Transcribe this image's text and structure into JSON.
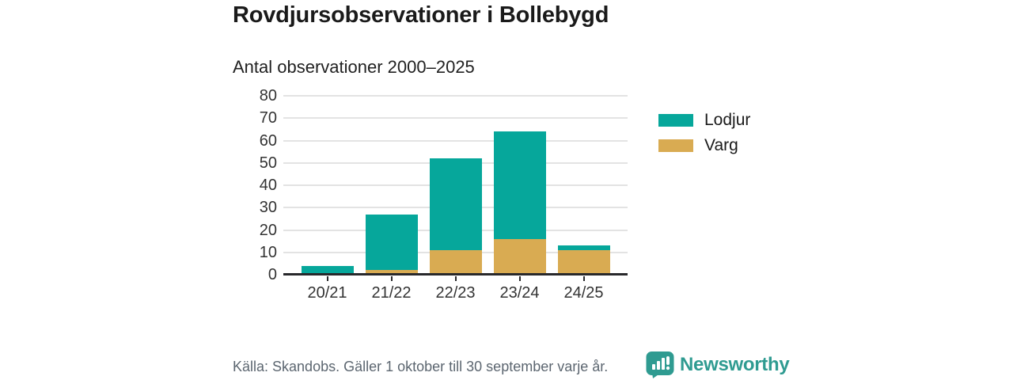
{
  "header": {
    "title": "Rovdjursobservationer i Bollebygd",
    "subtitle": "Antal observationer 2000–2025"
  },
  "chart_data": {
    "type": "bar",
    "stacked": true,
    "title": "Rovdjursobservationer i Bollebygd",
    "subtitle": "Antal observationer 2000–2025",
    "categories": [
      "20/21",
      "21/22",
      "22/23",
      "23/24",
      "24/25"
    ],
    "series": [
      {
        "name": "Varg",
        "color": "#d9ab52",
        "values": [
          0,
          2,
          11,
          16,
          11
        ]
      },
      {
        "name": "Lodjur",
        "color": "#06a79b",
        "values": [
          4,
          25,
          41,
          48,
          2
        ]
      }
    ],
    "totals": [
      4,
      27,
      52,
      64,
      13
    ],
    "xlabel": "",
    "ylabel": "",
    "ylim": [
      0,
      80
    ],
    "yticks": [
      0,
      10,
      20,
      30,
      40,
      50,
      60,
      70,
      80
    ],
    "grid": true,
    "legend_position": "right"
  },
  "legend": {
    "items": [
      {
        "label": "Lodjur",
        "color": "#06a79b"
      },
      {
        "label": "Varg",
        "color": "#d9ab52"
      }
    ]
  },
  "footer": {
    "source": "Källa: Skandobs. Gäller 1 oktober till 30 september varje år.",
    "brand": "Newsworthy"
  },
  "colors": {
    "lodjur": "#06a79b",
    "varg": "#d9ab52",
    "axis_line": "#28282b",
    "gridline": "#e3e3e3",
    "axis_text": "#333333",
    "title_text": "#1a1a1a",
    "footer_text": "#5c6670",
    "brand_teal": "#2f9b91"
  }
}
